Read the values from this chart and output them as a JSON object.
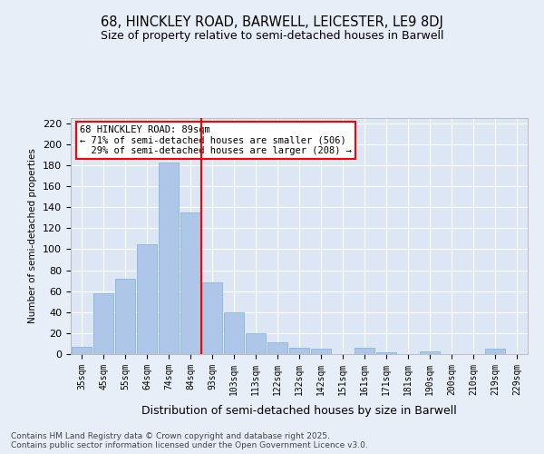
{
  "title_line1": "68, HINCKLEY ROAD, BARWELL, LEICESTER, LE9 8DJ",
  "title_line2": "Size of property relative to semi-detached houses in Barwell",
  "xlabel": "Distribution of semi-detached houses by size in Barwell",
  "ylabel": "Number of semi-detached properties",
  "footnote": "Contains HM Land Registry data © Crown copyright and database right 2025.\nContains public sector information licensed under the Open Government Licence v3.0.",
  "bins": [
    "35sqm",
    "45sqm",
    "55sqm",
    "64sqm",
    "74sqm",
    "84sqm",
    "93sqm",
    "103sqm",
    "113sqm",
    "122sqm",
    "132sqm",
    "142sqm",
    "151sqm",
    "161sqm",
    "171sqm",
    "181sqm",
    "190sqm",
    "200sqm",
    "210sqm",
    "219sqm",
    "229sqm"
  ],
  "values": [
    7,
    58,
    72,
    105,
    183,
    135,
    68,
    40,
    20,
    11,
    6,
    5,
    0,
    6,
    2,
    0,
    3,
    0,
    0,
    5,
    0
  ],
  "bar_color": "#aec6e8",
  "bar_edge_color": "#7bafd4",
  "vline_x": 5.5,
  "vline_color": "red",
  "annotation_text": "68 HINCKLEY ROAD: 89sqm\n← 71% of semi-detached houses are smaller (506)\n  29% of semi-detached houses are larger (208) →",
  "annotation_box_color": "white",
  "annotation_box_edge": "red",
  "ylim": [
    0,
    225
  ],
  "ytick_interval": 20,
  "background_color": "#e8eef7",
  "plot_bg_color": "#dce6f5",
  "grid_color": "white"
}
